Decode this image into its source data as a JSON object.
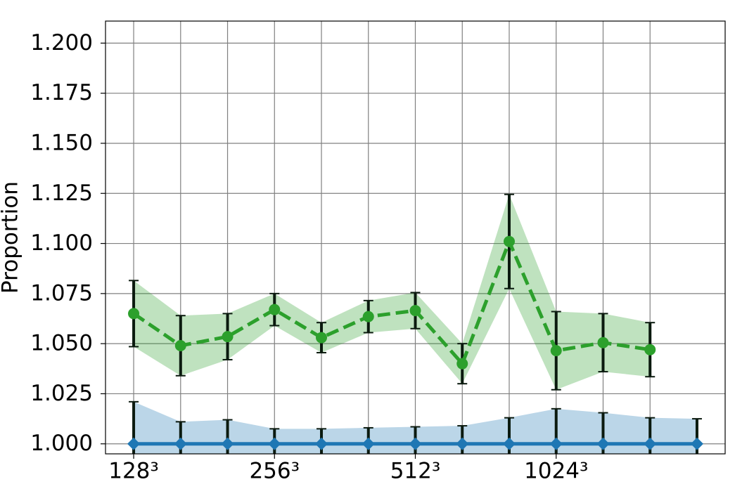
{
  "chart_data": {
    "type": "line",
    "ylabel": "Proportion",
    "xlim": [
      -0.6,
      12.6
    ],
    "xticks": [
      {
        "value": 0,
        "label": "128³"
      },
      {
        "value": 3,
        "label": "256³"
      },
      {
        "value": 6,
        "label": "512³"
      },
      {
        "value": 9,
        "label": "1024³"
      }
    ],
    "xminorticks": [
      0,
      1,
      2,
      3,
      4,
      5,
      6,
      7,
      8,
      9,
      10,
      11
    ],
    "ylim": [
      0.995,
      1.211
    ],
    "yticks": [
      {
        "value": 1.0,
        "label": "1.000"
      },
      {
        "value": 1.025,
        "label": "1.025"
      },
      {
        "value": 1.05,
        "label": "1.050"
      },
      {
        "value": 1.075,
        "label": "1.075"
      },
      {
        "value": 1.1,
        "label": "1.100"
      },
      {
        "value": 1.125,
        "label": "1.125"
      },
      {
        "value": 1.15,
        "label": "1.150"
      },
      {
        "value": 1.175,
        "label": "1.175"
      },
      {
        "value": 1.2,
        "label": "1.200"
      }
    ],
    "grid": true,
    "series": [
      {
        "color": "#2ca02c",
        "linestyle": "dashed",
        "marker": "circle",
        "x": [
          0,
          1,
          2,
          3,
          4,
          5,
          6,
          7,
          8,
          9,
          10,
          11
        ],
        "values": [
          1.065,
          1.049,
          1.0535,
          1.067,
          1.053,
          1.0635,
          1.0665,
          1.04,
          1.101,
          1.0465,
          1.0505,
          1.047
        ],
        "errors": [
          0.0165,
          0.015,
          0.0115,
          0.008,
          0.0075,
          0.008,
          0.009,
          0.01,
          0.0235,
          0.0195,
          0.0145,
          0.0135
        ]
      },
      {
        "color": "#1f77b4",
        "linestyle": "solid",
        "marker": "diamond",
        "x": [
          0,
          1,
          2,
          3,
          4,
          5,
          6,
          7,
          8,
          9,
          10,
          11,
          12
        ],
        "values": [
          1.0,
          1.0,
          1.0,
          1.0,
          1.0,
          1.0,
          1.0,
          1.0,
          1.0,
          1.0,
          1.0,
          1.0,
          1.0
        ],
        "errors": [
          0.021,
          0.011,
          0.012,
          0.0075,
          0.0075,
          0.008,
          0.0085,
          0.009,
          0.013,
          0.0175,
          0.0155,
          0.013,
          0.0125
        ]
      }
    ]
  }
}
